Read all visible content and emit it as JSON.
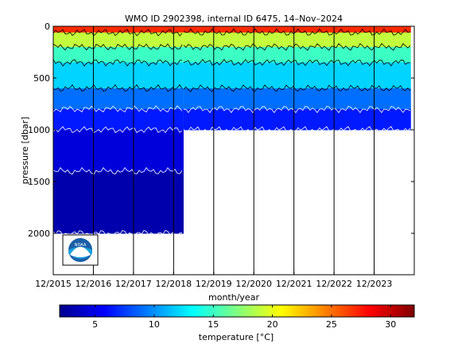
{
  "chart_data": {
    "type": "heatmap",
    "title": "WMO ID 2902398, internal ID 6475, 14–Nov–2024",
    "xlabel": "month/year",
    "ylabel": "pressure [dbar]",
    "y_reversed": true,
    "ylim": [
      0,
      2400
    ],
    "xlim": [
      "2015-12",
      "2024-12"
    ],
    "x_ticks": [
      "12/2015",
      "12/2016",
      "12/2017",
      "12/2018",
      "12/2019",
      "12/2020",
      "12/2021",
      "12/2022",
      "12/2023"
    ],
    "y_ticks": [
      0,
      500,
      1000,
      1500,
      2000
    ],
    "vertical_gridlines": true,
    "profile_depth_segments": [
      {
        "from": "2015-12",
        "to": "2019-03",
        "max_pressure": 2000
      },
      {
        "from": "2019-03",
        "to": "2024-11",
        "max_pressure": 1000
      }
    ],
    "temperature_bands": [
      {
        "pressure_from": 0,
        "pressure_to": 60,
        "temperature": 27
      },
      {
        "pressure_from": 60,
        "pressure_to": 200,
        "temperature": 19
      },
      {
        "pressure_from": 200,
        "pressure_to": 350,
        "temperature": 15
      },
      {
        "pressure_from": 350,
        "pressure_to": 600,
        "temperature": 12
      },
      {
        "pressure_from": 600,
        "pressure_to": 800,
        "temperature": 9
      },
      {
        "pressure_from": 800,
        "pressure_to": 1000,
        "temperature": 6.5
      },
      {
        "pressure_from": 1000,
        "pressure_to": 1400,
        "temperature": 4.5
      },
      {
        "pressure_from": 1400,
        "pressure_to": 2000,
        "temperature": 3
      }
    ],
    "colorbar": {
      "label": "temperature [°C]",
      "range": [
        2,
        32
      ],
      "ticks": [
        5,
        10,
        15,
        20,
        25,
        30
      ],
      "colormap": "jet"
    },
    "logo": "NOAA"
  },
  "colors": {
    "frame": "#000000",
    "contour_dark": "#000000",
    "contour_light": "#ffffff"
  }
}
